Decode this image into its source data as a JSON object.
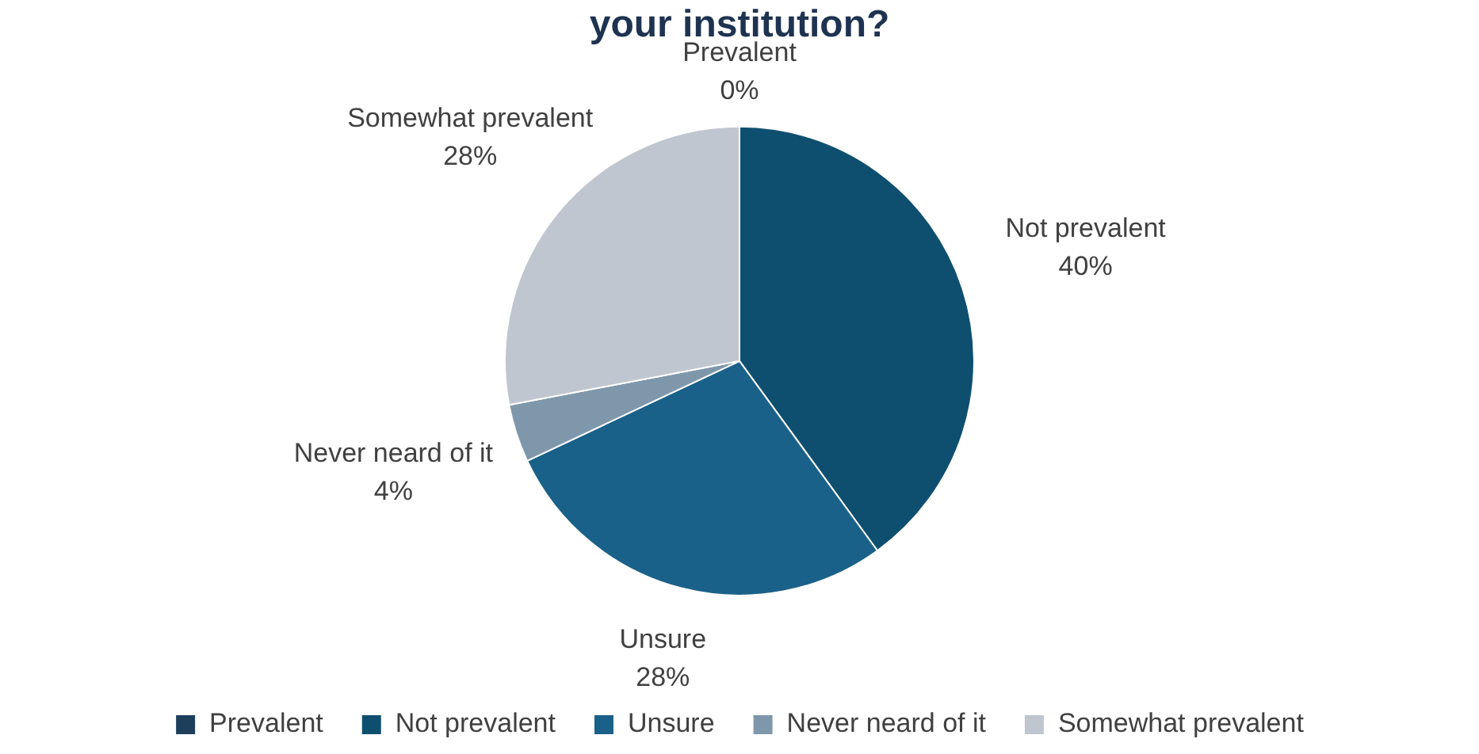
{
  "chart_data": {
    "type": "pie",
    "title": "your institution?",
    "categories": [
      "Prevalent",
      "Not prevalent",
      "Unsure",
      "Never neard of it",
      "Somewhat prevalent"
    ],
    "values": [
      0,
      40,
      28,
      4,
      28
    ],
    "colors": [
      "#1e3f5c",
      "#0e4f70",
      "#1a6189",
      "#7e97ab",
      "#bfc6cf"
    ],
    "value_labels": [
      "0%",
      "40%",
      "28%",
      "4%",
      "28%"
    ],
    "legend": "bottom"
  }
}
